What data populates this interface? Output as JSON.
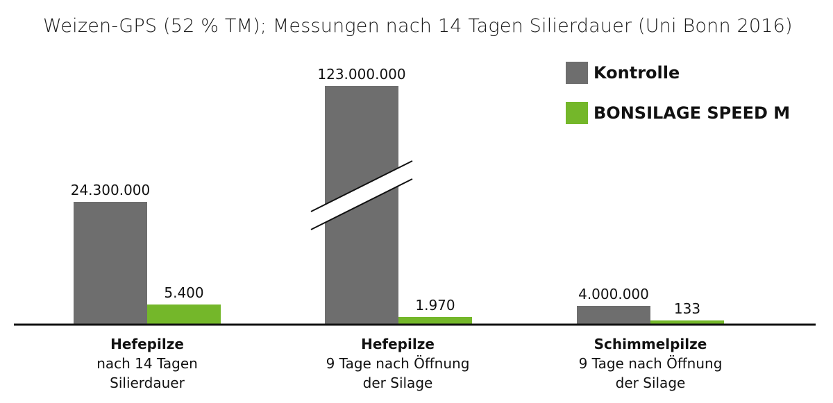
{
  "title": "Weizen-GPS (52 % TM); Messungen nach 14 Tagen Silierdauer (Uni Bonn 2016)",
  "colors": {
    "kontrolle": "#6e6e6e",
    "bonsilage": "#74b72a",
    "axis": "#111111"
  },
  "legend": [
    {
      "label": "Kontrolle",
      "color": "#6e6e6e"
    },
    {
      "label": "BONSILAGE SPEED M",
      "color": "#74b72a"
    }
  ],
  "categories": [
    {
      "line1": "Hefepilze",
      "line2": "nach 14 Tagen",
      "line3": "Silierdauer"
    },
    {
      "line1": "Hefepilze",
      "line2": "9 Tage nach Öffnung",
      "line3": "der Silage"
    },
    {
      "line1": "Schimmelpilze",
      "line2": "9 Tage nach Öffnung",
      "line3": "der Silage"
    }
  ],
  "chart_data": {
    "type": "bar",
    "title": "Weizen-GPS (52 % TM); Messungen nach 14 Tagen Silierdauer (Uni Bonn 2016)",
    "categories": [
      "Hefepilze nach 14 Tagen Silierdauer",
      "Hefepilze 9 Tage nach Öffnung der Silage",
      "Schimmelpilze 9 Tage nach Öffnung der Silage"
    ],
    "series": [
      {
        "name": "Kontrolle",
        "values": [
          24300000,
          123000000,
          4000000
        ],
        "labels": [
          "24.300.000",
          "123.000.000",
          "4.000.000"
        ]
      },
      {
        "name": "BONSILAGE SPEED M",
        "values": [
          5400,
          1970,
          133
        ],
        "labels": [
          "5.400",
          "1.970",
          "133"
        ]
      }
    ],
    "axis_break": {
      "category_index": 1,
      "series_index": 0
    },
    "grid": false,
    "legend_position": "top-right",
    "note": "bar heights not to scale; broken axis on the middle Kontrolle bar"
  }
}
